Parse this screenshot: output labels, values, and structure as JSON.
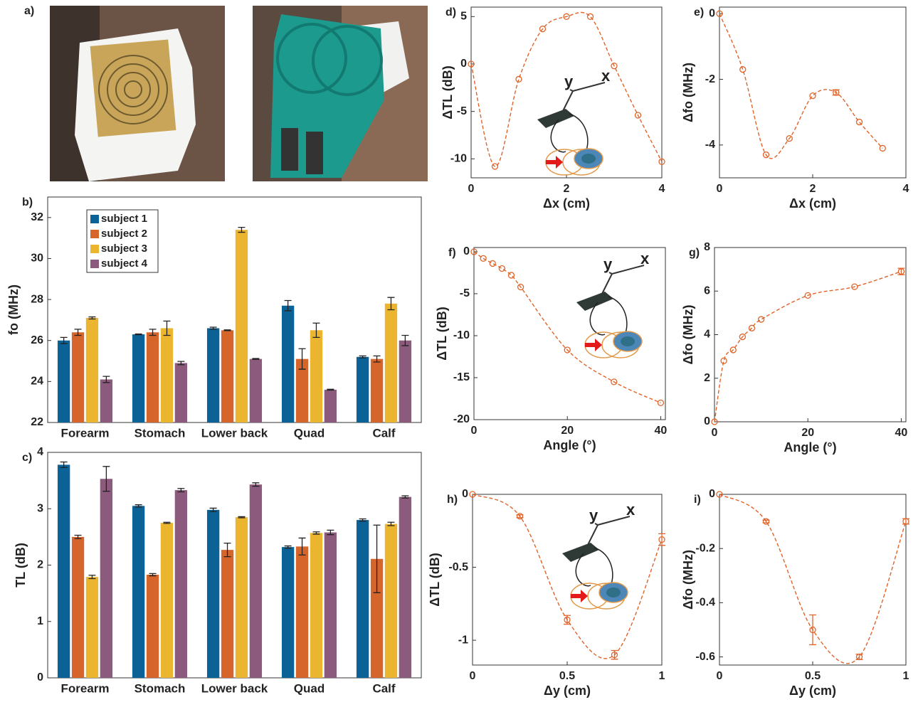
{
  "panel_a": {
    "label": "a)"
  },
  "chart_data": [
    {
      "type": "bar",
      "panel": "b)",
      "ylabel": "fo (MHz)",
      "categories": [
        "Forearm",
        "Stomach",
        "Lower back",
        "Quad",
        "Calf"
      ],
      "series": [
        {
          "name": "subject 1",
          "color": "#0b6296",
          "values": [
            26.0,
            26.3,
            26.6,
            27.7,
            25.2
          ],
          "errors": [
            0.15,
            0.02,
            0.05,
            0.25,
            0.05
          ]
        },
        {
          "name": "subject 2",
          "color": "#d6652b",
          "values": [
            26.4,
            26.4,
            26.5,
            25.1,
            25.1
          ],
          "errors": [
            0.15,
            0.15,
            0.02,
            0.5,
            0.15
          ]
        },
        {
          "name": "subject 3",
          "color": "#ebb530",
          "values": [
            27.1,
            26.6,
            31.4,
            26.5,
            27.8
          ],
          "errors": [
            0.05,
            0.35,
            0.12,
            0.35,
            0.3
          ]
        },
        {
          "name": "subject 4",
          "color": "#8c5a7c",
          "values": [
            24.1,
            24.9,
            25.1,
            23.6,
            26.0
          ],
          "errors": [
            0.15,
            0.08,
            0.02,
            0.02,
            0.25
          ]
        }
      ],
      "ylim": [
        22,
        33
      ],
      "yticks": [
        22,
        24,
        26,
        28,
        30,
        32
      ],
      "legend": "upper left"
    },
    {
      "type": "bar",
      "panel": "c)",
      "ylabel": "TL (dB)",
      "categories": [
        "Forearm",
        "Stomach",
        "Lower back",
        "Quad",
        "Calf"
      ],
      "series": [
        {
          "color": "#0b6296",
          "values": [
            3.78,
            3.05,
            2.98,
            2.32,
            2.8
          ],
          "errors": [
            0.05,
            0.02,
            0.03,
            0.02,
            0.02
          ]
        },
        {
          "color": "#d6652b",
          "values": [
            2.5,
            1.83,
            2.27,
            2.33,
            2.11
          ],
          "errors": [
            0.03,
            0.02,
            0.12,
            0.15,
            0.6
          ]
        },
        {
          "color": "#ebb530",
          "values": [
            1.79,
            2.75,
            2.85,
            2.57,
            2.73
          ],
          "errors": [
            0.03,
            0.01,
            0.01,
            0.02,
            0.03
          ]
        },
        {
          "color": "#8c5a7c",
          "values": [
            3.53,
            3.33,
            3.43,
            2.58,
            3.21
          ],
          "errors": [
            0.22,
            0.03,
            0.03,
            0.04,
            0.02
          ]
        }
      ],
      "ylim": [
        0,
        4
      ],
      "yticks": [
        0,
        1,
        2,
        3,
        4
      ]
    },
    {
      "type": "line",
      "panel": "d)",
      "xlabel": "Δx (cm)",
      "ylabel": "ΔTL (dB)",
      "color": "#e0642a",
      "annotations": [
        "y",
        "x"
      ],
      "x": [
        0,
        0.5,
        1,
        1.5,
        2,
        2.5,
        3,
        3.5,
        4
      ],
      "values": [
        0,
        -10.8,
        -1.6,
        3.7,
        5,
        5,
        -0.2,
        -5.4,
        -10.3
      ],
      "xlim": [
        0,
        4
      ],
      "xticks": [
        0,
        2,
        4
      ],
      "ylim": [
        -12,
        6
      ],
      "yticks": [
        -10,
        -5,
        0,
        5
      ]
    },
    {
      "type": "line",
      "panel": "e)",
      "xlabel": "Δx (cm)",
      "ylabel": "Δfo (MHz)",
      "color": "#e0642a",
      "x": [
        0,
        0.5,
        1,
        1.5,
        2,
        2.5,
        3,
        3.5
      ],
      "values": [
        0,
        -1.7,
        -4.3,
        -3.8,
        -2.5,
        -2.4,
        -3.3,
        -4.1
      ],
      "errors": [
        0,
        0,
        0,
        0,
        0,
        0.08,
        0,
        0
      ],
      "xlim": [
        0,
        4
      ],
      "xticks": [
        0,
        2,
        4
      ],
      "ylim": [
        -5,
        0.2
      ],
      "yticks": [
        -4,
        -2,
        0
      ]
    },
    {
      "type": "line",
      "panel": "f)",
      "xlabel": "Angle (°)",
      "ylabel": "ΔTL (dB)",
      "color": "#e0642a",
      "annotations": [
        "y",
        "x"
      ],
      "x": [
        0,
        2,
        4,
        6,
        8,
        10,
        20,
        30,
        40
      ],
      "values": [
        0,
        -0.8,
        -1.4,
        -2.0,
        -2.8,
        -4.2,
        -11.7,
        -15.5,
        -18
      ],
      "xlim": [
        0,
        41
      ],
      "xticks": [
        0,
        20,
        40
      ],
      "ylim": [
        -20,
        0.5
      ],
      "yticks": [
        -20,
        -15,
        -10,
        -5,
        0
      ]
    },
    {
      "type": "line",
      "panel": "g)",
      "xlabel": "Angle (°)",
      "ylabel": "Δfo (MHz)",
      "color": "#e0642a",
      "x": [
        0,
        2,
        4,
        6,
        8,
        10,
        20,
        30,
        40
      ],
      "values": [
        0,
        2.8,
        3.3,
        3.9,
        4.3,
        4.7,
        5.8,
        6.2,
        6.9
      ],
      "errors": [
        0,
        0,
        0,
        0,
        0,
        0,
        0,
        0,
        0.15
      ],
      "xlim": [
        0,
        41
      ],
      "xticks": [
        0,
        20,
        40
      ],
      "ylim": [
        0,
        8
      ],
      "yticks": [
        0,
        2,
        4,
        6,
        8
      ]
    },
    {
      "type": "line",
      "panel": "h)",
      "xlabel": "Δy (cm)",
      "ylabel": "ΔTL (dB)",
      "color": "#e0642a",
      "annotations": [
        "y",
        "x"
      ],
      "x": [
        0,
        0.25,
        0.5,
        0.75,
        1
      ],
      "values": [
        0,
        -0.15,
        -0.86,
        -1.1,
        -0.31
      ],
      "errors": [
        0,
        0.01,
        0.03,
        0.03,
        0.04
      ],
      "xlim": [
        0,
        1
      ],
      "xticks": [
        0,
        0.5,
        1
      ],
      "ylim": [
        -1.17,
        0
      ],
      "yticks": [
        -1,
        -0.5,
        0
      ]
    },
    {
      "type": "line",
      "panel": "i)",
      "xlabel": "Δy (cm)",
      "ylabel": "Δfo (MHz)",
      "color": "#e0642a",
      "x": [
        0,
        0.25,
        0.5,
        0.75,
        1
      ],
      "values": [
        0,
        -0.1,
        -0.5,
        -0.6,
        -0.1
      ],
      "errors": [
        0,
        0.005,
        0.055,
        0.01,
        0.01
      ],
      "xlim": [
        0,
        1
      ],
      "xticks": [
        0,
        0.5,
        1
      ],
      "ylim": [
        -0.63,
        0
      ],
      "yticks": [
        -0.6,
        -0.4,
        -0.2,
        0
      ]
    }
  ]
}
